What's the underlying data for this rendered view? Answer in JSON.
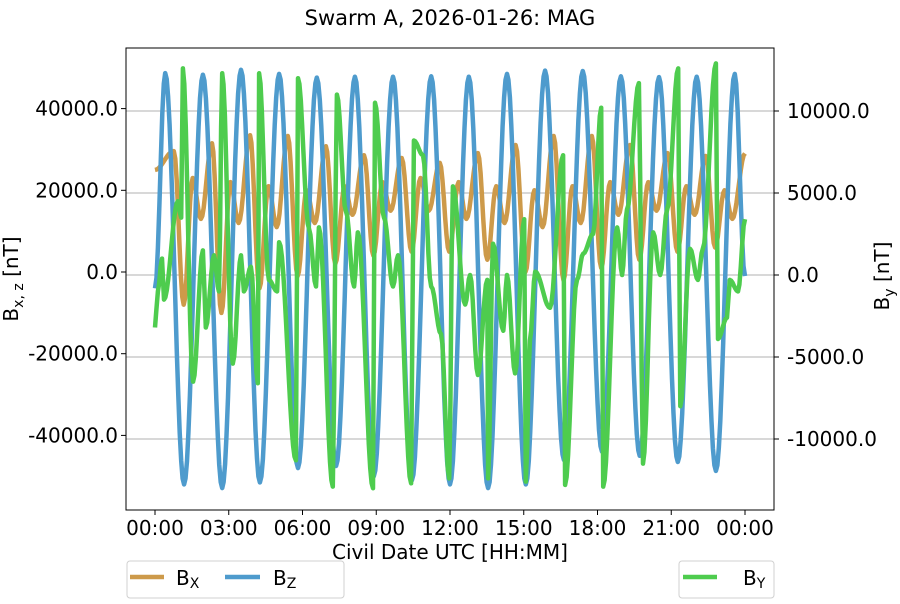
{
  "chart_data": {
    "type": "line",
    "title": "Swarm A, 2026-01-26: MAG",
    "xlabel": "Civil Date UTC [HH:MM]",
    "ylabel_left": {
      "base": "B",
      "sub": "x, z",
      "unit": " [nT]"
    },
    "ylabel_right": {
      "base": "B",
      "sub": "y",
      "unit": " [nT]"
    },
    "xlim": [
      "00:00",
      "24:00"
    ],
    "ylim_left": [
      -58000,
      55000
    ],
    "ylim_right": [
      -14000,
      13500
    ],
    "x_ticks": [
      "00:00",
      "03:00",
      "06:00",
      "09:00",
      "12:00",
      "15:00",
      "18:00",
      "21:00",
      "00:00"
    ],
    "y_ticks_left": [
      {
        "value": 40000,
        "label": "40000.0"
      },
      {
        "value": 20000,
        "label": "20000.0"
      },
      {
        "value": 0,
        "label": "0.0"
      },
      {
        "value": -20000,
        "label": "-20000.0"
      },
      {
        "value": -40000,
        "label": "-40000.0"
      }
    ],
    "y_ticks_right": [
      {
        "value": 10000,
        "label": "10000.0"
      },
      {
        "value": 5000,
        "label": "5000.0"
      },
      {
        "value": 0,
        "label": "0.0"
      },
      {
        "value": -5000,
        "label": "-5000.0"
      },
      {
        "value": -10000,
        "label": "-10000.0"
      }
    ],
    "grid": "horizontal (right axis)",
    "series": [
      {
        "name": "B_X",
        "label_base": "B",
        "label_sub": "X",
        "axis": "left",
        "color": "#cd9a4a",
        "points": [
          [
            "00:00",
            25000
          ],
          [
            "00:46",
            29600
          ],
          [
            "01:10",
            -8000
          ],
          [
            "01:32",
            23000
          ],
          [
            "01:52",
            13000
          ],
          [
            "02:19",
            31500
          ],
          [
            "02:42",
            -10000
          ],
          [
            "03:04",
            22000
          ],
          [
            "03:24",
            12000
          ],
          [
            "03:52",
            33500
          ],
          [
            "04:15",
            -4000
          ],
          [
            "04:37",
            21000
          ],
          [
            "04:57",
            11000
          ],
          [
            "05:24",
            33300
          ],
          [
            "05:48",
            -1000
          ],
          [
            "06:10",
            20000
          ],
          [
            "06:30",
            12000
          ],
          [
            "06:57",
            30800
          ],
          [
            "07:20",
            2000
          ],
          [
            "07:43",
            21000
          ],
          [
            "08:02",
            14000
          ],
          [
            "08:30",
            28600
          ],
          [
            "08:53",
            4000
          ],
          [
            "09:15",
            22000
          ],
          [
            "09:35",
            15000
          ],
          [
            "10:02",
            27900
          ],
          [
            "10:26",
            5000
          ],
          [
            "10:48",
            23000
          ],
          [
            "11:08",
            15000
          ],
          [
            "11:35",
            26700
          ],
          [
            "11:58",
            5000
          ],
          [
            "12:21",
            22000
          ],
          [
            "12:40",
            13000
          ],
          [
            "13:08",
            29100
          ],
          [
            "13:31",
            3000
          ],
          [
            "13:53",
            21000
          ],
          [
            "14:13",
            12000
          ],
          [
            "14:40",
            31100
          ],
          [
            "15:04",
            0
          ],
          [
            "15:26",
            20000
          ],
          [
            "15:46",
            11000
          ],
          [
            "16:13",
            33300
          ],
          [
            "16:37",
            -2000
          ],
          [
            "16:59",
            21000
          ],
          [
            "17:19",
            12000
          ],
          [
            "17:46",
            33300
          ],
          [
            "18:09",
            1000
          ],
          [
            "18:31",
            22000
          ],
          [
            "18:51",
            14000
          ],
          [
            "19:19",
            31100
          ],
          [
            "19:42",
            3000
          ],
          [
            "20:04",
            22000
          ],
          [
            "20:24",
            15000
          ],
          [
            "20:51",
            29100
          ],
          [
            "21:15",
            5000
          ],
          [
            "21:37",
            21000
          ],
          [
            "21:57",
            14000
          ],
          [
            "22:24",
            28400
          ],
          [
            "22:47",
            6000
          ],
          [
            "23:10",
            20000
          ],
          [
            "23:29",
            13000
          ],
          [
            "24:00",
            29000
          ]
        ]
      },
      {
        "name": "B_Z",
        "label_base": "B",
        "label_sub": "Z",
        "axis": "left",
        "color": "#4e9bcd",
        "points": [
          [
            "00:00",
            -4000
          ],
          [
            "00:25",
            48700
          ],
          [
            "01:11",
            -52000
          ],
          [
            "01:57",
            48300
          ],
          [
            "02:44",
            -52900
          ],
          [
            "03:30",
            49500
          ],
          [
            "04:16",
            -51500
          ],
          [
            "05:03",
            48500
          ],
          [
            "05:49",
            -48000
          ],
          [
            "06:35",
            47600
          ],
          [
            "07:22",
            -47500
          ],
          [
            "08:08",
            47800
          ],
          [
            "08:54",
            -50000
          ],
          [
            "09:41",
            47800
          ],
          [
            "10:27",
            -51000
          ],
          [
            "11:14",
            47900
          ],
          [
            "12:00",
            -52000
          ],
          [
            "12:46",
            47800
          ],
          [
            "13:33",
            -52900
          ],
          [
            "14:19",
            48500
          ],
          [
            "15:05",
            -52000
          ],
          [
            "15:52",
            49300
          ],
          [
            "16:38",
            -46000
          ],
          [
            "17:24",
            49200
          ],
          [
            "18:11",
            -44000
          ],
          [
            "18:57",
            47900
          ],
          [
            "19:43",
            -45000
          ],
          [
            "20:30",
            47700
          ],
          [
            "21:16",
            -46500
          ],
          [
            "22:02",
            47800
          ],
          [
            "22:49",
            -48700
          ],
          [
            "23:35",
            48500
          ],
          [
            "24:00",
            -1000
          ]
        ]
      },
      {
        "name": "B_Y",
        "label_base": "B",
        "label_sub": "Y",
        "axis": "right",
        "color": "#4ecc4e",
        "points": [
          [
            "00:00",
            -3200
          ],
          [
            "00:07",
            -1000
          ],
          [
            "00:17",
            1000
          ],
          [
            "00:22",
            -1500
          ],
          [
            "00:56",
            4500
          ],
          [
            "01:04",
            3500
          ],
          [
            "01:08",
            12600
          ],
          [
            "01:33",
            -6500
          ],
          [
            "01:57",
            1500
          ],
          [
            "02:04",
            -3200
          ],
          [
            "02:24",
            1200
          ],
          [
            "02:36",
            -1000
          ],
          [
            "02:44",
            12300
          ],
          [
            "03:10",
            -5400
          ],
          [
            "03:30",
            1200
          ],
          [
            "03:37",
            -1000
          ],
          [
            "03:54",
            500
          ],
          [
            "04:11",
            -6600
          ],
          [
            "04:14",
            12300
          ],
          [
            "04:38",
            -300
          ],
          [
            "04:58",
            -1000
          ],
          [
            "05:03",
            2000
          ],
          [
            "05:44",
            -11300
          ],
          [
            "05:49",
            12000
          ],
          [
            "06:16",
            2800
          ],
          [
            "06:33",
            -700
          ],
          [
            "06:40",
            2900
          ],
          [
            "07:14",
            -12900
          ],
          [
            "07:24",
            11000
          ],
          [
            "07:46",
            3900
          ],
          [
            "08:06",
            -700
          ],
          [
            "08:15",
            2600
          ],
          [
            "08:52",
            -13000
          ],
          [
            "08:57",
            10500
          ],
          [
            "09:19",
            3500
          ],
          [
            "09:41",
            -700
          ],
          [
            "09:53",
            1200
          ],
          [
            "10:25",
            -12700
          ],
          [
            "10:32",
            8200
          ],
          [
            "10:54",
            7300
          ],
          [
            "11:14",
            -700
          ],
          [
            "11:38",
            -3600
          ],
          [
            "11:58",
            -12400
          ],
          [
            "12:07",
            5400
          ],
          [
            "12:37",
            -1800
          ],
          [
            "12:49",
            0
          ],
          [
            "13:08",
            -6100
          ],
          [
            "13:31",
            -300
          ],
          [
            "13:33",
            -12400
          ],
          [
            "13:45",
            1900
          ],
          [
            "14:10",
            -3400
          ],
          [
            "14:19",
            0
          ],
          [
            "14:39",
            -6000
          ],
          [
            "15:01",
            3400
          ],
          [
            "15:05",
            -12600
          ],
          [
            "15:15",
            -4000
          ],
          [
            "15:28",
            200
          ],
          [
            "16:04",
            -2000
          ],
          [
            "16:36",
            7300
          ],
          [
            "16:41",
            -12800
          ],
          [
            "17:10",
            -300
          ],
          [
            "17:25",
            1300
          ],
          [
            "17:49",
            2500
          ],
          [
            "18:09",
            10200
          ],
          [
            "18:14",
            -12900
          ],
          [
            "18:48",
            2900
          ],
          [
            "19:00",
            0
          ],
          [
            "19:12",
            4000
          ],
          [
            "19:41",
            11700
          ],
          [
            "19:51",
            -11500
          ],
          [
            "20:16",
            2600
          ],
          [
            "20:33",
            0
          ],
          [
            "20:50",
            4000
          ],
          [
            "21:17",
            12600
          ],
          [
            "21:22",
            -8000
          ],
          [
            "21:46",
            1600
          ],
          [
            "22:05",
            -300
          ],
          [
            "22:17",
            1600
          ],
          [
            "22:49",
            12900
          ],
          [
            "22:54",
            -3900
          ],
          [
            "23:16",
            -2600
          ],
          [
            "23:23",
            -300
          ],
          [
            "23:43",
            -1000
          ],
          [
            "24:00",
            3400
          ]
        ]
      }
    ],
    "legend": [
      {
        "placement": "bottom-left",
        "entries": [
          "B_X",
          "B_Z"
        ]
      },
      {
        "placement": "bottom-right",
        "entries": [
          "B_Y"
        ]
      }
    ]
  }
}
